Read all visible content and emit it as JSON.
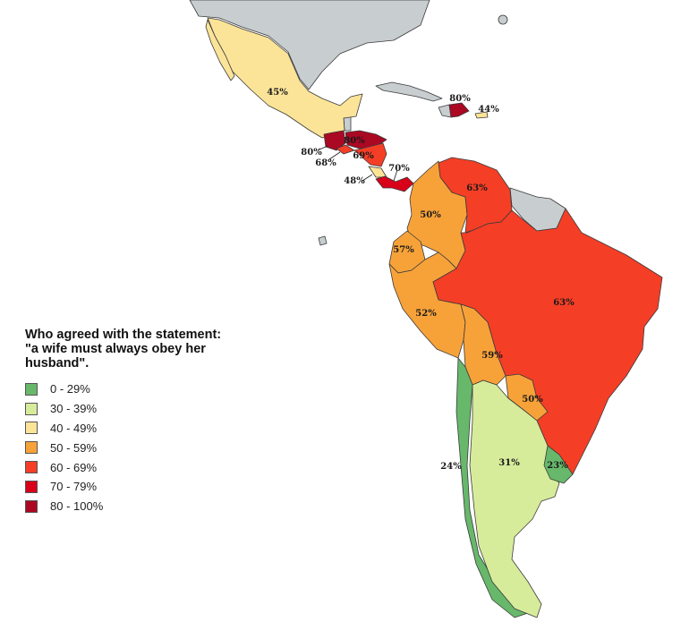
{
  "legend": {
    "title_lines": [
      "Who agreed with the statement:",
      "\"a wife must always obey her",
      "husband\"."
    ],
    "bins": [
      {
        "label": "0 - 29%",
        "color": "#67b86b"
      },
      {
        "label": "30 - 39%",
        "color": "#d7ec9b"
      },
      {
        "label": "40 - 49%",
        "color": "#fbe498"
      },
      {
        "label": "50 - 59%",
        "color": "#f7a239"
      },
      {
        "label": "60 - 69%",
        "color": "#f53e26"
      },
      {
        "label": "70 - 79%",
        "color": "#d9001a"
      },
      {
        "label": "80 - 100%",
        "color": "#ab0823"
      }
    ]
  },
  "no_data_color": "#c8cdd0",
  "regions": {
    "mexico": {
      "value": 45,
      "label": "45%",
      "color": "#fbe498"
    },
    "dominican_republic": {
      "value": 80,
      "label": "80%",
      "color": "#ab0823"
    },
    "jamaica": {
      "value": 44,
      "label": "44%",
      "color": "#fbe498"
    },
    "guatemala": {
      "value": 80,
      "label": "80%",
      "color": "#ab0823"
    },
    "honduras": {
      "value": 80,
      "label": "80%",
      "color": "#ab0823"
    },
    "el_salvador": {
      "value": 68,
      "label": "68%",
      "color": "#f53e26"
    },
    "nicaragua": {
      "value": 69,
      "label": "69%",
      "color": "#f53e26"
    },
    "costa_rica": {
      "value": 48,
      "label": "48%",
      "color": "#fbe498"
    },
    "panama": {
      "value": 70,
      "label": "70%",
      "color": "#d9001a"
    },
    "venezuela": {
      "value": 63,
      "label": "63%",
      "color": "#f53e26"
    },
    "colombia": {
      "value": 50,
      "label": "50%",
      "color": "#f7a239"
    },
    "ecuador": {
      "value": 57,
      "label": "57%",
      "color": "#f7a239"
    },
    "peru": {
      "value": 52,
      "label": "52%",
      "color": "#f7a239"
    },
    "brazil": {
      "value": 63,
      "label": "63%",
      "color": "#f53e26"
    },
    "bolivia": {
      "value": 59,
      "label": "59%",
      "color": "#f7a239"
    },
    "paraguay": {
      "value": 50,
      "label": "50%",
      "color": "#f7a239"
    },
    "chile": {
      "value": 24,
      "label": "24%",
      "color": "#67b86b"
    },
    "argentina": {
      "value": 31,
      "label": "31%",
      "color": "#d7ec9b"
    },
    "uruguay": {
      "value": 23,
      "label": "23%",
      "color": "#67b86b"
    }
  }
}
